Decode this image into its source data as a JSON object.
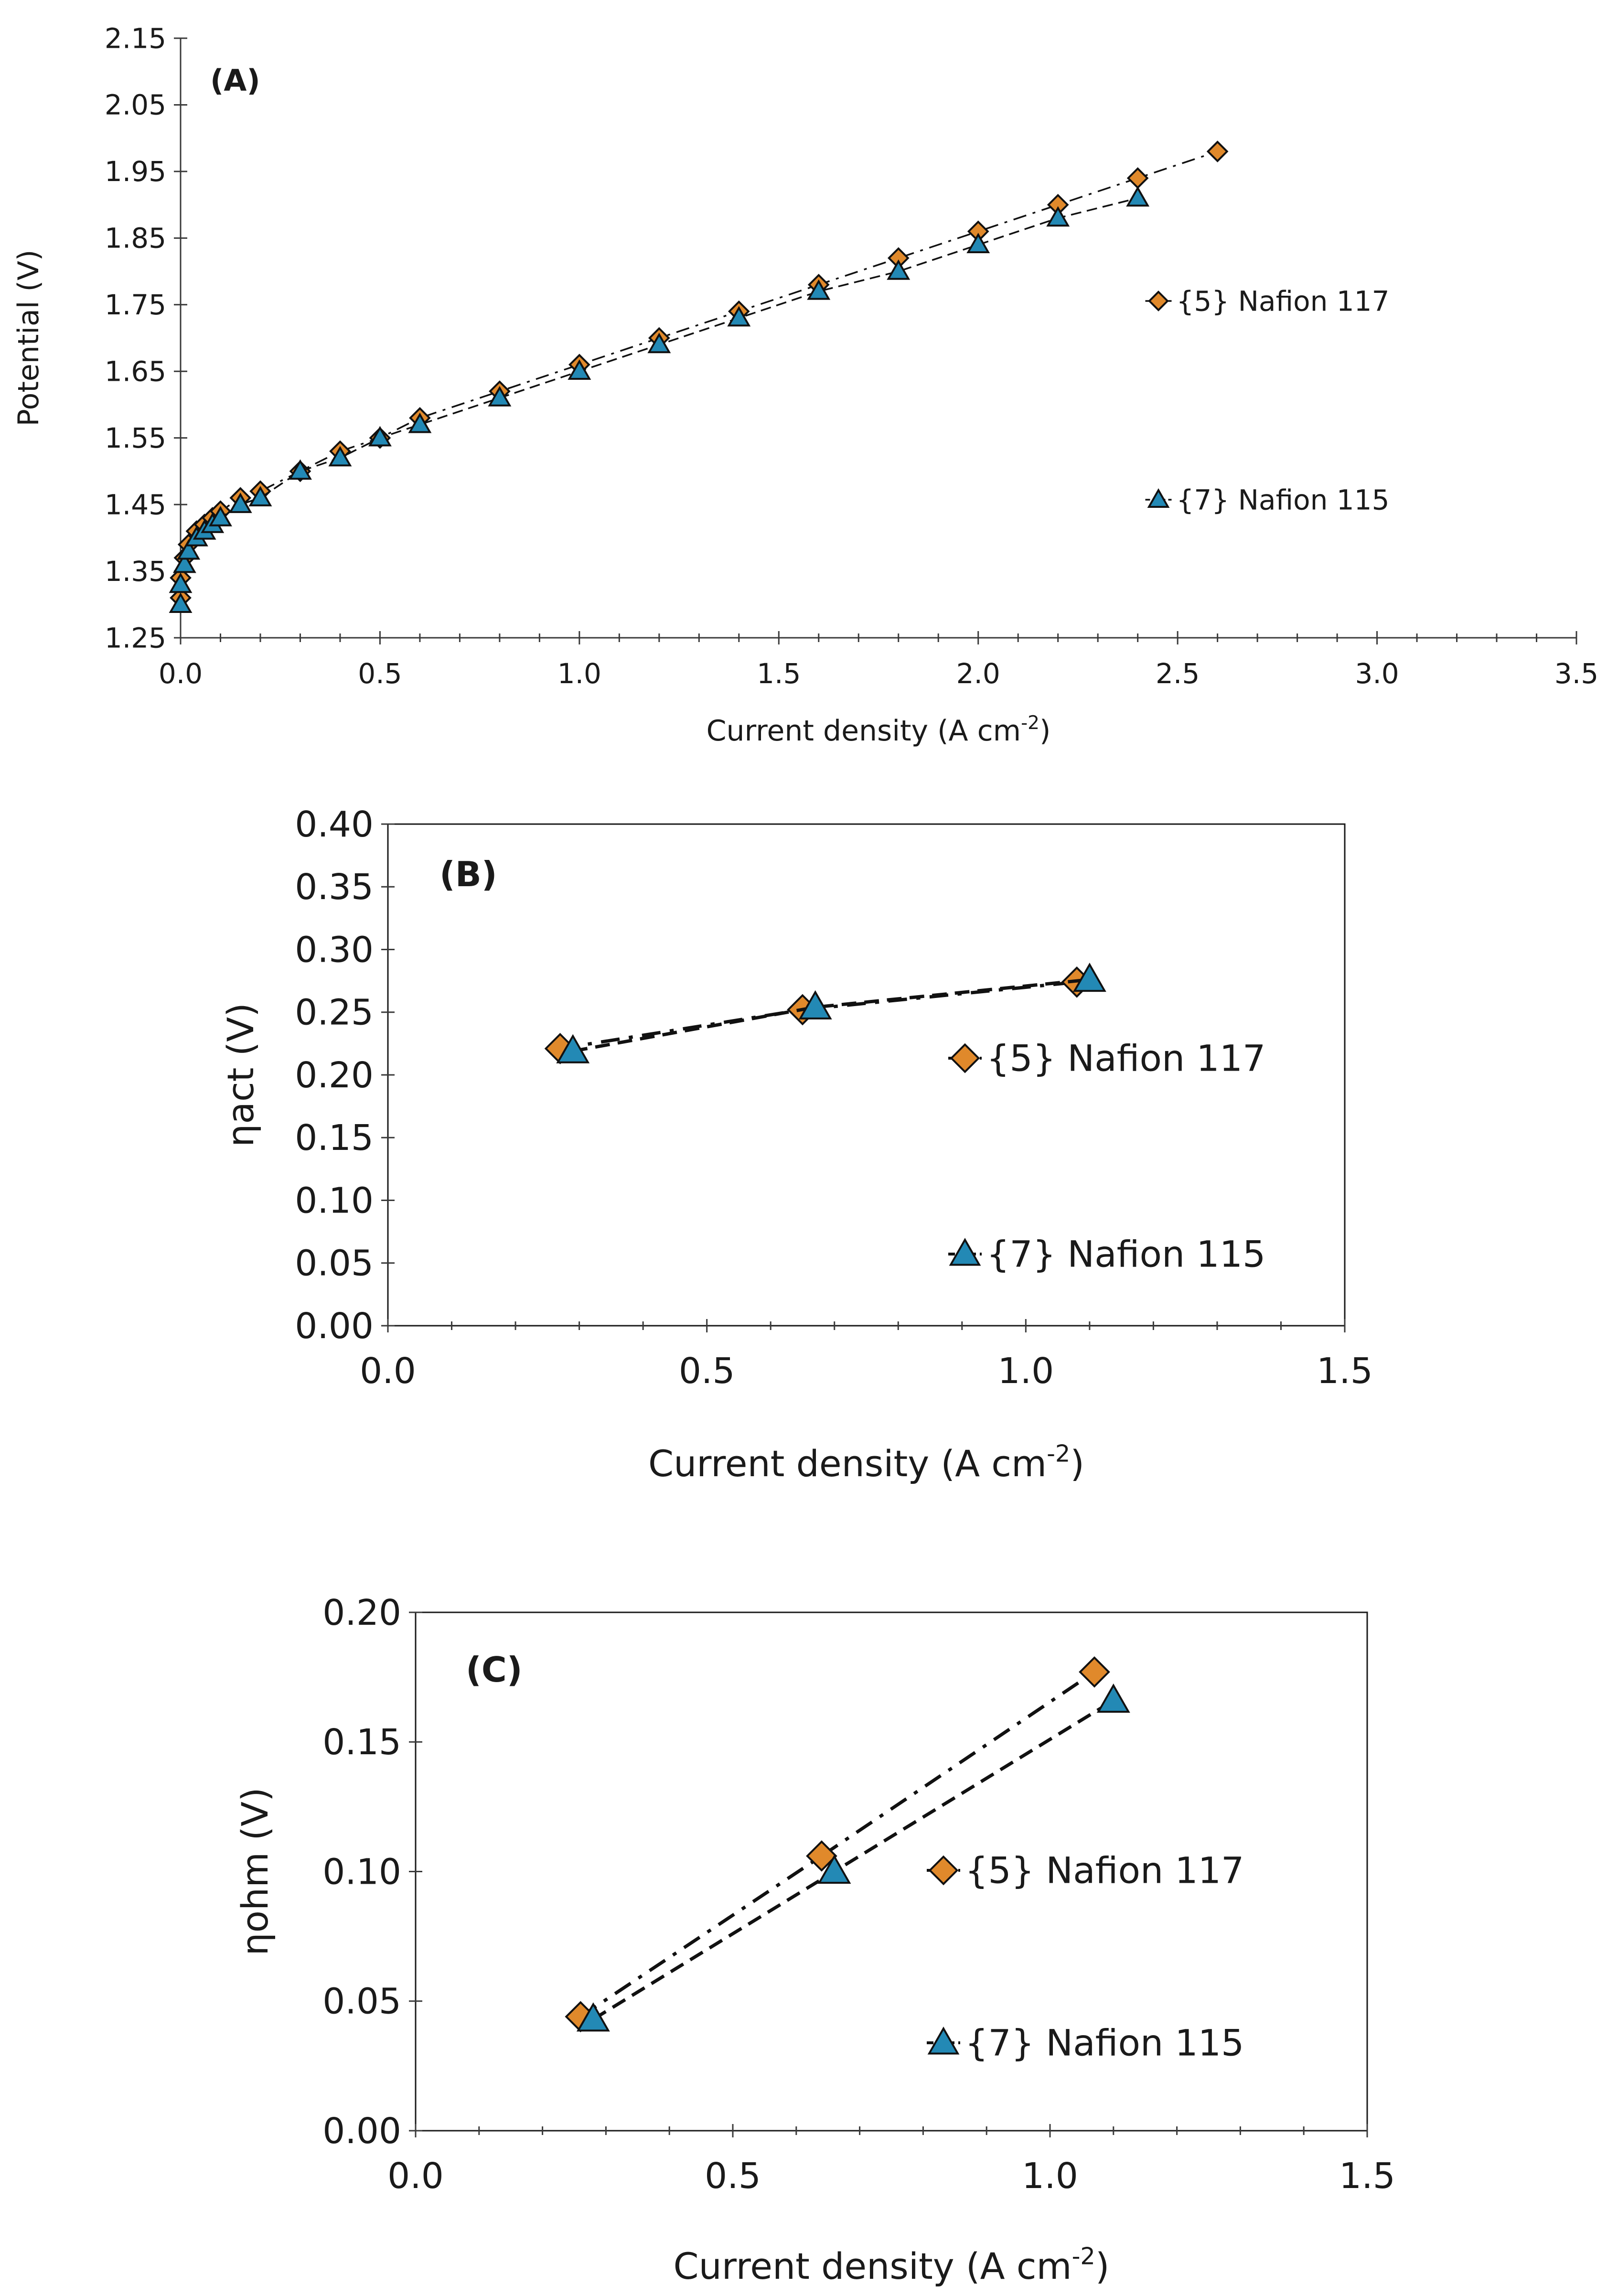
{
  "chart_data": [
    {
      "id": "A",
      "type": "line",
      "panel_label": "(A)",
      "xlabel": "Current density (A cm",
      "xlabel_sup": "-2",
      "xlabel_tail": ")",
      "ylabel": "Potential (V)",
      "xlim": [
        0,
        3.5
      ],
      "ylim": [
        1.25,
        2.15
      ],
      "xticks": [
        0.0,
        0.5,
        1.0,
        1.5,
        2.0,
        2.5,
        3.0,
        3.5
      ],
      "xtick_labels": [
        "0.0",
        "0.5",
        "1.0",
        "1.5",
        "2.0",
        "2.5",
        "3.0",
        "3.5"
      ],
      "yticks": [
        1.25,
        1.35,
        1.45,
        1.55,
        1.65,
        1.75,
        1.85,
        1.95,
        2.05,
        2.15
      ],
      "ytick_labels": [
        "1.25",
        "1.35",
        "1.45",
        "1.55",
        "1.65",
        "1.75",
        "1.85",
        "1.95",
        "2.05",
        "2.15"
      ],
      "grid": false,
      "legend_position": "right",
      "series": [
        {
          "name": "{5} Nafion 117",
          "marker": "diamond",
          "color": "#E0892B",
          "dash": "dashdot",
          "x": [
            0.0,
            0.0,
            0.01,
            0.02,
            0.04,
            0.06,
            0.08,
            0.1,
            0.15,
            0.2,
            0.3,
            0.4,
            0.5,
            0.6,
            0.8,
            1.0,
            1.2,
            1.4,
            1.6,
            1.8,
            2.0,
            2.2,
            2.4,
            2.6
          ],
          "y": [
            1.31,
            1.34,
            1.37,
            1.39,
            1.41,
            1.42,
            1.43,
            1.44,
            1.46,
            1.47,
            1.5,
            1.53,
            1.55,
            1.58,
            1.62,
            1.66,
            1.7,
            1.74,
            1.78,
            1.82,
            1.86,
            1.9,
            1.94,
            1.98
          ]
        },
        {
          "name": "{7} Nafion 115",
          "marker": "triangle",
          "color": "#2389B5",
          "dash": "dash",
          "x": [
            0.0,
            0.0,
            0.01,
            0.02,
            0.04,
            0.06,
            0.08,
            0.1,
            0.15,
            0.2,
            0.3,
            0.4,
            0.5,
            0.6,
            0.8,
            1.0,
            1.2,
            1.4,
            1.6,
            1.8,
            2.0,
            2.2,
            2.4
          ],
          "y": [
            1.3,
            1.33,
            1.36,
            1.38,
            1.4,
            1.41,
            1.42,
            1.43,
            1.45,
            1.46,
            1.5,
            1.52,
            1.55,
            1.57,
            1.61,
            1.65,
            1.69,
            1.73,
            1.77,
            1.8,
            1.84,
            1.88,
            1.91
          ]
        }
      ]
    },
    {
      "id": "B",
      "type": "line",
      "panel_label": "(B)",
      "xlabel": "Current density (A cm",
      "xlabel_sup": "-2",
      "xlabel_tail": ")",
      "ylabel": "ηact (V)",
      "xlim": [
        0,
        1.5
      ],
      "ylim": [
        0,
        0.4
      ],
      "xticks": [
        0.0,
        0.5,
        1.0,
        1.5
      ],
      "xtick_labels": [
        "0.0",
        "0.5",
        "1.0",
        "1.5"
      ],
      "yticks": [
        0.0,
        0.05,
        0.1,
        0.15,
        0.2,
        0.25,
        0.3,
        0.35,
        0.4
      ],
      "ytick_labels": [
        "0.00",
        "0.05",
        "0.10",
        "0.15",
        "0.20",
        "0.25",
        "0.30",
        "0.35",
        "0.40"
      ],
      "grid": false,
      "legend_position": "right",
      "series": [
        {
          "name": "{5} Nafion 117",
          "marker": "diamond",
          "color": "#E0892B",
          "dash": "dashdot",
          "x": [
            0.27,
            0.65,
            1.08
          ],
          "y": [
            0.221,
            0.252,
            0.274
          ]
        },
        {
          "name": "{7} Nafion 115",
          "marker": "triangle",
          "color": "#2389B5",
          "dash": "dash",
          "x": [
            0.29,
            0.67,
            1.1
          ],
          "y": [
            0.219,
            0.254,
            0.276
          ]
        }
      ]
    },
    {
      "id": "C",
      "type": "line",
      "panel_label": "(C)",
      "xlabel": "Current density (A cm",
      "xlabel_sup": "-2",
      "xlabel_tail": ")",
      "ylabel": "ηohm (V)",
      "xlim": [
        0,
        1.5
      ],
      "ylim": [
        0,
        0.2
      ],
      "xticks": [
        0.0,
        0.5,
        1.0,
        1.5
      ],
      "xtick_labels": [
        "0.0",
        "0.5",
        "1.0",
        "1.5"
      ],
      "yticks": [
        0.0,
        0.05,
        0.1,
        0.15,
        0.2
      ],
      "ytick_labels": [
        "0.00",
        "0.05",
        "0.10",
        "0.15",
        "0.20"
      ],
      "grid": false,
      "legend_position": "right",
      "series": [
        {
          "name": "{5} Nafion 117",
          "marker": "diamond",
          "color": "#E0892B",
          "dash": "dashdot",
          "x": [
            0.26,
            0.64,
            1.07
          ],
          "y": [
            0.044,
            0.106,
            0.177
          ]
        },
        {
          "name": "{7} Nafion 115",
          "marker": "triangle",
          "color": "#2389B5",
          "dash": "dash",
          "x": [
            0.28,
            0.66,
            1.1
          ],
          "y": [
            0.043,
            0.1,
            0.166
          ]
        }
      ]
    }
  ]
}
